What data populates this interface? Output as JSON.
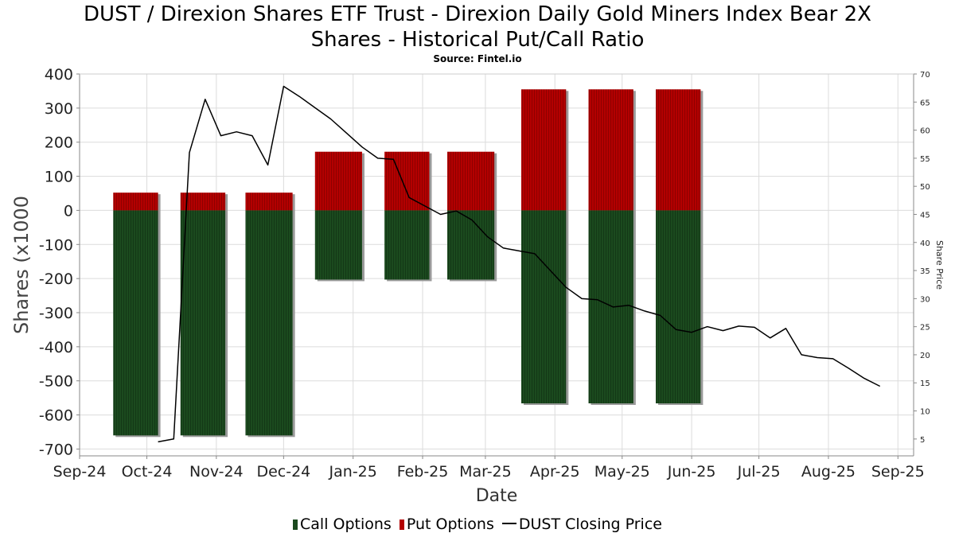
{
  "title_lines": [
    "DUST / Direxion Shares ETF Trust - Direxion Daily Gold Miners Index Bear 2X",
    "Shares - Historical Put/Call Ratio"
  ],
  "source": "Source: Fintel.io",
  "legend": {
    "call": "Call Options",
    "put": "Put Options",
    "price": "DUST Closing Price"
  },
  "colors": {
    "call": "#1b4a1e",
    "put": "#b30000",
    "price_line": "#000000",
    "bar_shadow": "#9a9a9a",
    "grid": "#dcdcdc"
  },
  "chart_data": {
    "type": "bar",
    "title": "DUST / Direxion Shares ETF Trust - Direxion Daily Gold Miners Index Bear 2X Shares - Historical Put/Call Ratio",
    "xlabel": "Date",
    "ylabel": "Shares (x1000",
    "y2label": "Share Price",
    "ylim": [
      -720,
      400
    ],
    "y2lim": [
      2,
      70
    ],
    "y_ticks": [
      400,
      300,
      200,
      100,
      0,
      -100,
      -200,
      -300,
      -400,
      -500,
      -600,
      -700
    ],
    "y2_ticks": [
      70,
      65,
      60,
      55,
      50,
      45,
      40,
      35,
      30,
      25,
      20,
      15,
      10,
      5
    ],
    "xlim": [
      "2024-09-01",
      "2025-09-08"
    ],
    "x_ticks": [
      {
        "date": "2024-09-01",
        "label": "Sep-24"
      },
      {
        "date": "2024-10-01",
        "label": "Oct-24"
      },
      {
        "date": "2024-11-01",
        "label": "Nov-24"
      },
      {
        "date": "2024-12-01",
        "label": "Dec-24"
      },
      {
        "date": "2025-01-01",
        "label": "Jan-25"
      },
      {
        "date": "2025-02-01",
        "label": "Feb-25"
      },
      {
        "date": "2025-03-01",
        "label": "Mar-25"
      },
      {
        "date": "2025-04-01",
        "label": "Apr-25"
      },
      {
        "date": "2025-05-01",
        "label": "May-25"
      },
      {
        "date": "2025-06-01",
        "label": "Jun-25"
      },
      {
        "date": "2025-07-01",
        "label": "Jul-25"
      },
      {
        "date": "2025-08-01",
        "label": "Aug-25"
      },
      {
        "date": "2025-09-01",
        "label": "Sep-25"
      }
    ],
    "grid": true,
    "legend_position": "bottom",
    "bars": [
      {
        "start": "2024-09-16",
        "end": "2024-10-06",
        "call": -660,
        "put": 52
      },
      {
        "start": "2024-10-16",
        "end": "2024-11-05",
        "call": -660,
        "put": 52
      },
      {
        "start": "2024-11-14",
        "end": "2024-12-05",
        "call": -660,
        "put": 52
      },
      {
        "start": "2024-12-15",
        "end": "2025-01-05",
        "call": -203,
        "put": 172
      },
      {
        "start": "2025-01-15",
        "end": "2025-02-04",
        "call": -203,
        "put": 172
      },
      {
        "start": "2025-02-12",
        "end": "2025-03-05",
        "call": -203,
        "put": 172
      },
      {
        "start": "2025-03-17",
        "end": "2025-04-06",
        "call": -566,
        "put": 355
      },
      {
        "start": "2025-04-16",
        "end": "2025-05-06",
        "call": -566,
        "put": 355
      },
      {
        "start": "2025-05-16",
        "end": "2025-06-05",
        "call": -566,
        "put": 355
      }
    ],
    "series": [
      {
        "name": "DUST Closing Price",
        "points": [
          [
            "2024-10-06",
            4.5
          ],
          [
            "2024-10-13",
            5.0
          ],
          [
            "2024-10-20",
            56.0
          ],
          [
            "2024-10-27",
            65.5
          ],
          [
            "2024-11-03",
            59.0
          ],
          [
            "2024-11-10",
            59.7
          ],
          [
            "2024-11-17",
            59.0
          ],
          [
            "2024-11-24",
            53.8
          ],
          [
            "2024-12-01",
            67.8
          ],
          [
            "2024-12-08",
            66.0
          ],
          [
            "2024-12-15",
            64.0
          ],
          [
            "2024-12-22",
            62.0
          ],
          [
            "2024-12-29",
            59.5
          ],
          [
            "2025-01-05",
            57.0
          ],
          [
            "2025-01-12",
            55.0
          ],
          [
            "2025-01-19",
            54.8
          ],
          [
            "2025-01-26",
            48.0
          ],
          [
            "2025-02-02",
            46.5
          ],
          [
            "2025-02-09",
            45.0
          ],
          [
            "2025-02-16",
            45.6
          ],
          [
            "2025-02-23",
            44.0
          ],
          [
            "2025-03-02",
            41.0
          ],
          [
            "2025-03-09",
            39.0
          ],
          [
            "2025-03-16",
            38.5
          ],
          [
            "2025-03-23",
            38.0
          ],
          [
            "2025-03-30",
            35.0
          ],
          [
            "2025-04-06",
            32.0
          ],
          [
            "2025-04-13",
            30.0
          ],
          [
            "2025-04-20",
            29.8
          ],
          [
            "2025-04-27",
            28.5
          ],
          [
            "2025-05-04",
            28.8
          ],
          [
            "2025-05-11",
            27.8
          ],
          [
            "2025-05-18",
            27.0
          ],
          [
            "2025-05-25",
            24.5
          ],
          [
            "2025-06-01",
            24.0
          ],
          [
            "2025-06-08",
            25.0
          ],
          [
            "2025-06-15",
            24.3
          ],
          [
            "2025-06-22",
            25.1
          ],
          [
            "2025-06-29",
            24.9
          ],
          [
            "2025-07-06",
            23.0
          ],
          [
            "2025-07-13",
            24.7
          ],
          [
            "2025-07-20",
            20.0
          ],
          [
            "2025-07-27",
            19.5
          ],
          [
            "2025-08-03",
            19.3
          ],
          [
            "2025-08-10",
            17.6
          ],
          [
            "2025-08-17",
            15.8
          ],
          [
            "2025-08-24",
            14.4
          ]
        ]
      }
    ]
  }
}
